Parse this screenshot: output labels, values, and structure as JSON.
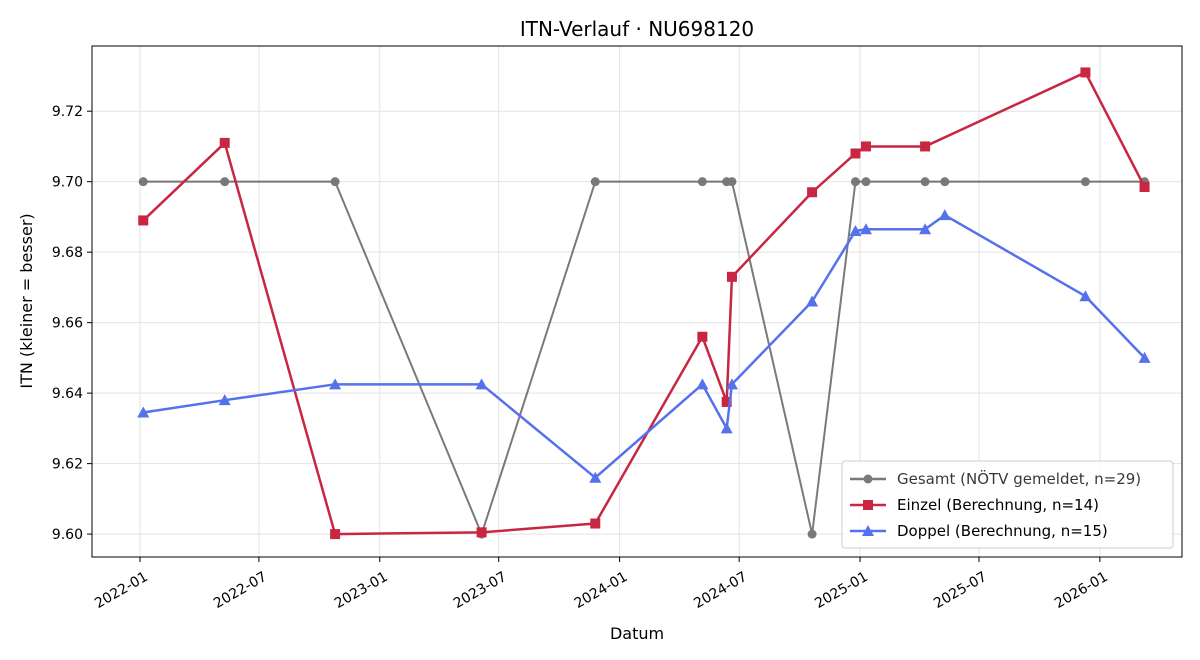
{
  "chart_data": {
    "type": "line",
    "title": "ITN-Verlauf · NU698120",
    "xlabel": "Datum",
    "ylabel": "ITN  (kleiner = besser)",
    "xlim": [
      "2021-10-20",
      "2026-05-06"
    ],
    "ylim": [
      9.5935,
      9.7385
    ],
    "x_ticks": [
      "2022-01-01",
      "2022-07-01",
      "2023-01-01",
      "2023-07-01",
      "2024-01-01",
      "2024-07-01",
      "2025-01-01",
      "2025-07-01",
      "2026-01-01"
    ],
    "x_tick_labels": [
      "2022-01",
      "2022-07",
      "2023-01",
      "2023-07",
      "2024-01",
      "2024-07",
      "2025-01",
      "2025-07",
      "2026-01"
    ],
    "y_ticks": [
      9.6,
      9.62,
      9.64,
      9.66,
      9.68,
      9.7,
      9.72
    ],
    "y_tick_labels": [
      "9.60",
      "9.62",
      "9.64",
      "9.66",
      "9.68",
      "9.70",
      "9.72"
    ],
    "grid": true,
    "legend_position": "lower-right",
    "series": [
      {
        "name": "Gesamt (NÖTV gemeldet, n=29)",
        "color": "#555555",
        "marker": "circle",
        "x": [
          "2022-01-06",
          "2022-05-10",
          "2022-10-25",
          "2023-06-05",
          "2023-11-25",
          "2024-05-06",
          "2024-06-12",
          "2024-06-20",
          "2024-10-20",
          "2024-12-25",
          "2025-01-10",
          "2025-04-10",
          "2025-05-10",
          "2025-12-10",
          "2026-03-10"
        ],
        "values": [
          9.7,
          9.7,
          9.7,
          9.6,
          9.7,
          9.7,
          9.7,
          9.7,
          9.6,
          9.7,
          9.7,
          9.7,
          9.7,
          9.7,
          9.7
        ]
      },
      {
        "name": "Einzel (Berechnung, n=14)",
        "color": "#c82641",
        "marker": "square",
        "x": [
          "2022-01-06",
          "2022-05-10",
          "2022-10-25",
          "2023-06-05",
          "2023-11-25",
          "2024-05-06",
          "2024-06-12",
          "2024-06-20",
          "2024-10-20",
          "2024-12-25",
          "2025-01-10",
          "2025-04-10",
          "2025-12-10",
          "2026-03-10"
        ],
        "values": [
          9.689,
          9.711,
          9.6,
          9.6005,
          9.603,
          9.656,
          9.6375,
          9.673,
          9.697,
          9.708,
          9.71,
          9.71,
          9.731,
          9.6985
        ]
      },
      {
        "name": "Doppel (Berechnung, n=15)",
        "color": "#5571eb",
        "marker": "triangle",
        "x": [
          "2022-01-06",
          "2022-05-10",
          "2022-10-25",
          "2023-06-05",
          "2023-11-25",
          "2024-05-06",
          "2024-06-12",
          "2024-06-20",
          "2024-10-20",
          "2024-12-25",
          "2025-01-10",
          "2025-04-10",
          "2025-05-10",
          "2025-12-10",
          "2026-03-10"
        ],
        "values": [
          9.6345,
          9.638,
          9.6425,
          9.6425,
          9.616,
          9.6425,
          9.63,
          9.6425,
          9.666,
          9.686,
          9.6865,
          9.6865,
          9.6905,
          9.6675,
          9.65
        ]
      }
    ]
  }
}
